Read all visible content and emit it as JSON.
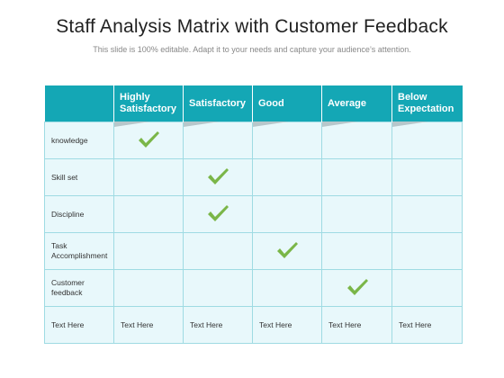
{
  "title": "Staff Analysis Matrix with Customer Feedback",
  "subtitle": "This slide is 100% editable. Adapt it to your needs and capture your audience’s attention.",
  "columns": [
    "",
    "Highly Satisfactory",
    "Satisfactory",
    "Good",
    "Average",
    "Below Expectation"
  ],
  "rows": [
    {
      "label": "knowledge",
      "checked_column": 1
    },
    {
      "label": "Skill set",
      "checked_column": 2
    },
    {
      "label": "Discipline",
      "checked_column": 2
    },
    {
      "label": "Task Accomplishment",
      "checked_column": 3
    },
    {
      "label": "Customer feedback",
      "checked_column": 4
    }
  ],
  "footer_row": [
    "Text Here",
    "Text Here",
    "Text Here",
    "Text Here",
    "Text Here",
    "Text Here"
  ],
  "colors": {
    "header": "#14a7b5",
    "cell": "#e8f8fb",
    "check": "#7ab648"
  },
  "icon": "check-mark-icon"
}
